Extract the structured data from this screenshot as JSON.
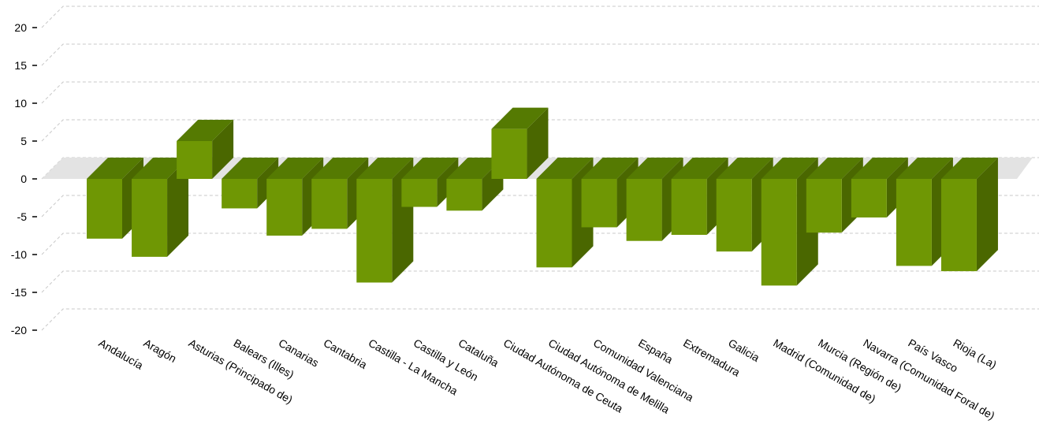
{
  "chart_data": {
    "type": "bar",
    "title": "",
    "xlabel": "",
    "ylabel": "",
    "ylim": [
      -20,
      20
    ],
    "yticks": [
      20,
      15,
      10,
      5,
      0,
      -5,
      -10,
      -15,
      -20
    ],
    "grid": true,
    "legend": "none",
    "style": "3d",
    "colors": {
      "bar_front": "#6f9704",
      "bar_top": "#557a02",
      "bar_side": "#4a6700",
      "floor": "#e3e3e3",
      "grid": "#c8c8c8"
    },
    "categories": [
      "Andalucía",
      "Aragón",
      "Asturias (Principado de)",
      "Balears (Illes)",
      "Canarias",
      "Cantabria",
      "Castilla - La Mancha",
      "Castilla y León",
      "Cataluña",
      "Ciudad Autónoma de Ceuta",
      "Ciudad Autónoma de Melilla",
      "Comunidad Valenciana",
      "España",
      "Extremadura",
      "Galicia",
      "Madrid (Comunidad de)",
      "Murcia (Región de)",
      "Navarra (Comunidad Foral de)",
      "País Vasco",
      "Rioja (La)"
    ],
    "values": [
      -7.9,
      -10.3,
      5.0,
      -3.9,
      -7.5,
      -6.6,
      -13.7,
      -3.7,
      -4.2,
      6.6,
      -11.7,
      -6.4,
      -8.2,
      -7.4,
      -9.6,
      -14.1,
      -7.1,
      -5.1,
      -11.5,
      -12.2
    ]
  }
}
